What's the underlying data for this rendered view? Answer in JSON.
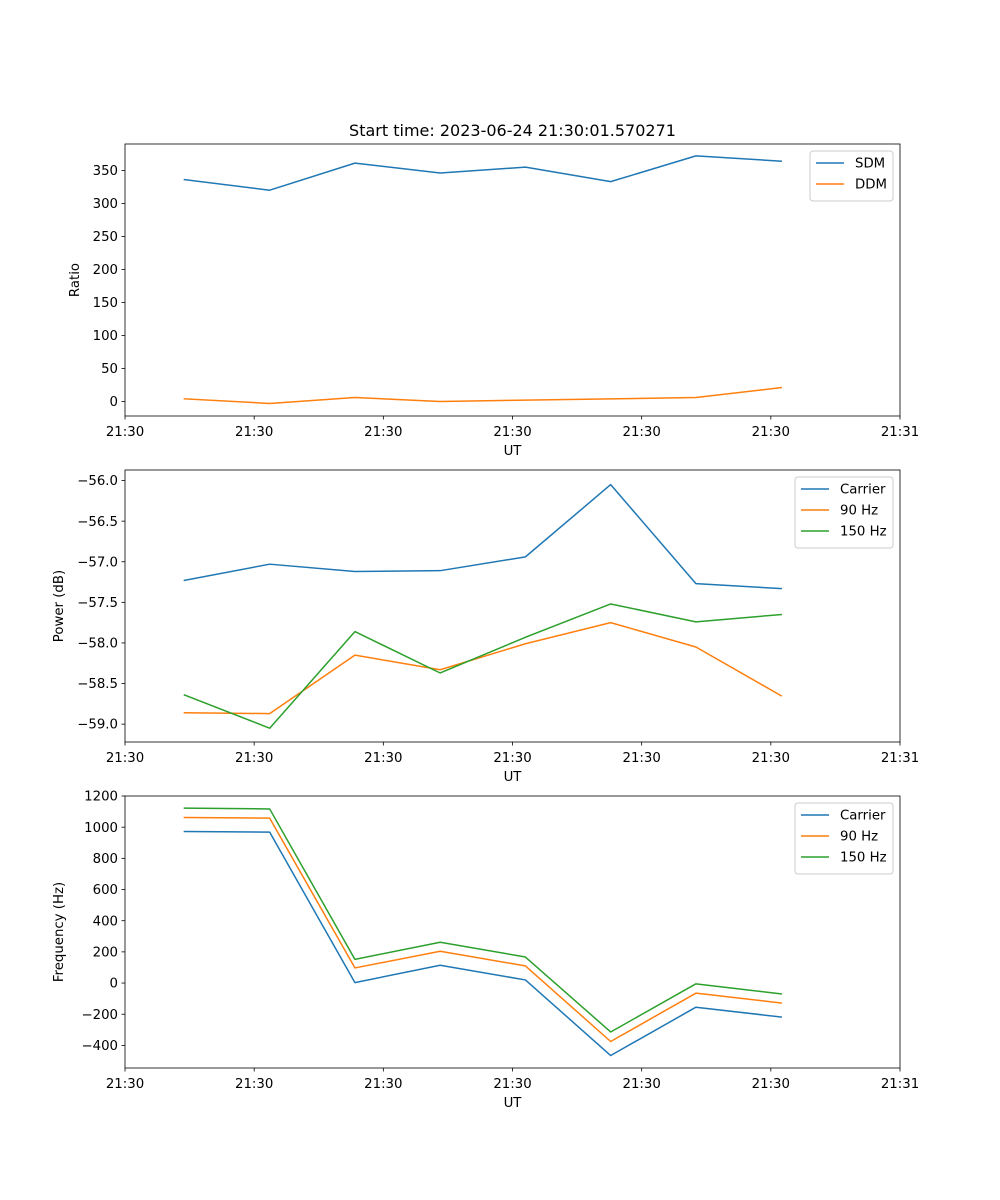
{
  "figure_title": "Start time: 2023-06-24 21:30:01.570271",
  "chart_data": [
    {
      "type": "line",
      "title": "Start time: 2023-06-24 21:30:01.570271",
      "xlabel": "UT",
      "ylabel": "Ratio",
      "xlim": [
        0,
        30
      ],
      "x_ticks": [
        {
          "value": 0,
          "label": "21:30"
        },
        {
          "value": 5,
          "label": "21:30"
        },
        {
          "value": 10,
          "label": "21:30"
        },
        {
          "value": 15,
          "label": "21:30"
        },
        {
          "value": 20,
          "label": "21:30"
        },
        {
          "value": 25,
          "label": "21:30"
        },
        {
          "value": 30,
          "label": "21:31"
        }
      ],
      "ylim": [
        -22,
        390
      ],
      "y_ticks": [
        0,
        50,
        100,
        150,
        200,
        250,
        300,
        350
      ],
      "y_tick_labels": [
        "0",
        "50",
        "100",
        "150",
        "200",
        "250",
        "300",
        "350"
      ],
      "x": [
        2.3,
        5.6,
        8.9,
        12.2,
        15.5,
        18.8,
        22.1,
        25.4
      ],
      "legend": "upper right",
      "series": [
        {
          "name": "SDM",
          "color": "#1f77b4",
          "values": [
            336,
            320,
            361,
            346,
            355,
            333,
            372,
            364
          ]
        },
        {
          "name": "DDM",
          "color": "#ff7f0e",
          "values": [
            4,
            -3,
            6,
            0,
            2,
            4,
            6,
            21
          ]
        }
      ]
    },
    {
      "type": "line",
      "xlabel": "UT",
      "ylabel": "Power (dB)",
      "xlim": [
        0,
        30
      ],
      "x_ticks": [
        {
          "value": 0,
          "label": "21:30"
        },
        {
          "value": 5,
          "label": "21:30"
        },
        {
          "value": 10,
          "label": "21:30"
        },
        {
          "value": 15,
          "label": "21:30"
        },
        {
          "value": 20,
          "label": "21:30"
        },
        {
          "value": 25,
          "label": "21:30"
        },
        {
          "value": 30,
          "label": "21:31"
        }
      ],
      "ylim": [
        -59.22,
        -55.87
      ],
      "y_ticks": [
        -59.0,
        -58.5,
        -58.0,
        -57.5,
        -57.0,
        -56.5,
        -56.0
      ],
      "y_tick_labels": [
        "−59.0",
        "−58.5",
        "−58.0",
        "−57.5",
        "−57.0",
        "−56.5",
        "−56.0"
      ],
      "x": [
        2.3,
        5.6,
        8.9,
        12.2,
        15.5,
        18.8,
        22.1,
        25.4
      ],
      "legend": "upper right",
      "series": [
        {
          "name": "Carrier",
          "color": "#1f77b4",
          "values": [
            -57.23,
            -57.03,
            -57.12,
            -57.11,
            -56.94,
            -56.05,
            -57.27,
            -57.33
          ]
        },
        {
          "name": "90 Hz",
          "color": "#ff7f0e",
          "values": [
            -58.86,
            -58.87,
            -58.15,
            -58.33,
            -58.01,
            -57.75,
            -58.05,
            -58.65
          ]
        },
        {
          "name": "150 Hz",
          "color": "#2ca02c",
          "values": [
            -58.64,
            -59.05,
            -57.86,
            -58.37,
            -57.93,
            -57.52,
            -57.74,
            -57.65
          ]
        }
      ]
    },
    {
      "type": "line",
      "xlabel": "UT",
      "ylabel": "Frequency (Hz)",
      "xlim": [
        0,
        30
      ],
      "x_ticks": [
        {
          "value": 0,
          "label": "21:30"
        },
        {
          "value": 5,
          "label": "21:30"
        },
        {
          "value": 10,
          "label": "21:30"
        },
        {
          "value": 15,
          "label": "21:30"
        },
        {
          "value": 20,
          "label": "21:30"
        },
        {
          "value": 25,
          "label": "21:30"
        },
        {
          "value": 30,
          "label": "21:31"
        }
      ],
      "ylim": [
        -545,
        1200
      ],
      "y_ticks": [
        -400,
        -200,
        0,
        200,
        400,
        600,
        800,
        1000,
        1200
      ],
      "y_tick_labels": [
        "−400",
        "−200",
        "0",
        "200",
        "400",
        "600",
        "800",
        "1000",
        "1200"
      ],
      "x": [
        2.3,
        5.6,
        8.9,
        12.2,
        15.5,
        18.8,
        22.1,
        25.4
      ],
      "legend": "upper right",
      "series": [
        {
          "name": "Carrier",
          "color": "#1f77b4",
          "values": [
            972,
            968,
            3,
            114,
            20,
            -465,
            -155,
            -218
          ]
        },
        {
          "name": "90 Hz",
          "color": "#ff7f0e",
          "values": [
            1062,
            1058,
            97,
            204,
            110,
            -375,
            -65,
            -128
          ]
        },
        {
          "name": "150 Hz",
          "color": "#2ca02c",
          "values": [
            1122,
            1117,
            152,
            262,
            167,
            -314,
            -5,
            -70
          ]
        }
      ]
    }
  ]
}
